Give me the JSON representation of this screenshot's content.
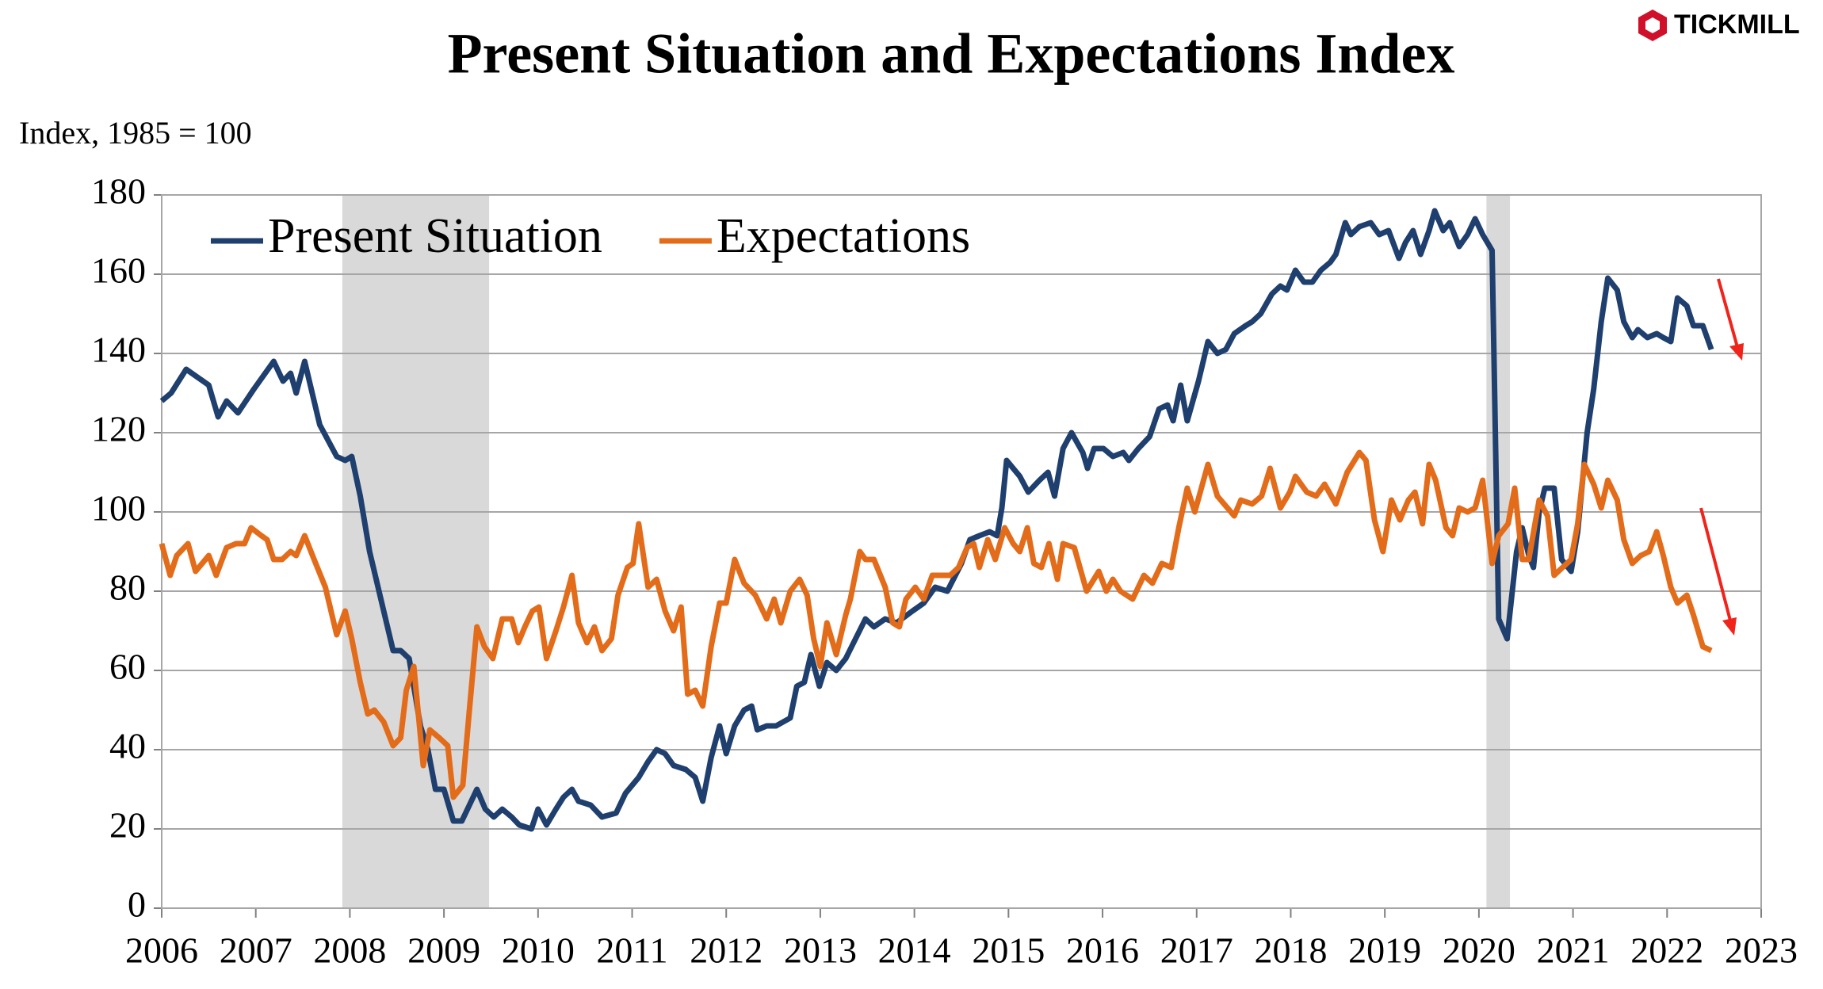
{
  "brand": "TICKMILL",
  "chart_data": {
    "type": "line",
    "title": "Present Situation and Expectations Index",
    "y_label": "Index, 1985 = 100",
    "xlim": [
      2006,
      2023
    ],
    "xticks": [
      2006,
      2007,
      2008,
      2009,
      2010,
      2011,
      2012,
      2013,
      2014,
      2015,
      2016,
      2017,
      2018,
      2019,
      2020,
      2021,
      2022,
      2023
    ],
    "ylim": [
      0,
      180
    ],
    "yticks": [
      0,
      20,
      40,
      60,
      80,
      100,
      120,
      140,
      160,
      180
    ],
    "grid": true,
    "legend": "upper left",
    "recessions": [
      [
        2007.92,
        2009.48
      ],
      [
        2020.08,
        2020.33
      ]
    ],
    "series": [
      {
        "name": "Present Situation",
        "color": "#1f3f6e",
        "x": [
          2006.0,
          2006.1,
          2006.26,
          2006.5,
          2006.6,
          2006.69,
          2006.81,
          2006.98,
          2007.19,
          2007.29,
          2007.37,
          2007.43,
          2007.52,
          2007.68,
          2007.86,
          2007.95,
          2008.02,
          2008.11,
          2008.21,
          2008.36,
          2008.46,
          2008.54,
          2008.63,
          2008.75,
          2008.83,
          2008.91,
          2009.0,
          2009.1,
          2009.19,
          2009.35,
          2009.44,
          2009.53,
          2009.62,
          2009.72,
          2009.8,
          2009.93,
          2010.0,
          2010.09,
          2010.19,
          2010.27,
          2010.36,
          2010.43,
          2010.56,
          2010.68,
          2010.83,
          2010.93,
          2011.07,
          2011.17,
          2011.26,
          2011.35,
          2011.44,
          2011.57,
          2011.67,
          2011.75,
          2011.84,
          2011.93,
          2012.0,
          2012.09,
          2012.19,
          2012.27,
          2012.33,
          2012.43,
          2012.53,
          2012.68,
          2012.75,
          2012.83,
          2012.9,
          2012.99,
          2013.07,
          2013.17,
          2013.27,
          2013.48,
          2013.57,
          2013.69,
          2013.81,
          2013.98,
          2014.1,
          2014.22,
          2014.35,
          2014.5,
          2014.59,
          2014.69,
          2014.8,
          2014.88,
          2014.93,
          2014.98,
          2015.12,
          2015.21,
          2015.33,
          2015.42,
          2015.49,
          2015.58,
          2015.67,
          2015.79,
          2015.84,
          2015.91,
          2016.01,
          2016.11,
          2016.22,
          2016.28,
          2016.38,
          2016.5,
          2016.6,
          2016.69,
          2016.75,
          2016.83,
          2016.9,
          2017.02,
          2017.12,
          2017.22,
          2017.31,
          2017.4,
          2017.52,
          2017.59,
          2017.68,
          2017.8,
          2017.89,
          2017.96,
          2018.05,
          2018.14,
          2018.23,
          2018.32,
          2018.42,
          2018.48,
          2018.58,
          2018.64,
          2018.73,
          2018.85,
          2018.94,
          2019.04,
          2019.15,
          2019.22,
          2019.3,
          2019.38,
          2019.47,
          2019.53,
          2019.62,
          2019.69,
          2019.79,
          2019.88,
          2019.96,
          2020.04,
          2020.14,
          2020.21,
          2020.3,
          2020.4,
          2020.46,
          2020.53,
          2020.58,
          2020.64,
          2020.7,
          2020.8,
          2020.88,
          2020.98,
          2021.05,
          2021.15,
          2021.22,
          2021.3,
          2021.37,
          2021.47,
          2021.54,
          2021.63,
          2021.69,
          2021.79,
          2021.89,
          2021.96,
          2022.04,
          2022.11,
          2022.21,
          2022.28,
          2022.38,
          2022.47
        ],
        "values": [
          128,
          130,
          136,
          132,
          124,
          128,
          125,
          131,
          138,
          133,
          135,
          130,
          138,
          122,
          114,
          113,
          114,
          104,
          90,
          75,
          65,
          65,
          63,
          46,
          40,
          30,
          30,
          22,
          22,
          30,
          25,
          23,
          25,
          23,
          21,
          20,
          25,
          21,
          25,
          28,
          30,
          27,
          26,
          23,
          24,
          29,
          33,
          37,
          40,
          39,
          36,
          35,
          33,
          27,
          38,
          46,
          39,
          46,
          50,
          51,
          45,
          46,
          46,
          48,
          56,
          57,
          64,
          56,
          62,
          60,
          63,
          73,
          71,
          73,
          72,
          75,
          77,
          81,
          80,
          87,
          93,
          94,
          95,
          94,
          101,
          113,
          109,
          105,
          108,
          110,
          104,
          116,
          120,
          115,
          111,
          116,
          116,
          114,
          115,
          113,
          116,
          119,
          126,
          127,
          123,
          132,
          123,
          133,
          143,
          140,
          141,
          145,
          147,
          148,
          150,
          155,
          157,
          156,
          161,
          158,
          158,
          161,
          163,
          165,
          173,
          170,
          172,
          173,
          170,
          171,
          164,
          168,
          171,
          165,
          171,
          176,
          171,
          173,
          167,
          170,
          174,
          170,
          166,
          73,
          68,
          90,
          96,
          89,
          86,
          100,
          106,
          106,
          88,
          85,
          95,
          120,
          131,
          148,
          159,
          156,
          148,
          144,
          146,
          144,
          145,
          144,
          143,
          154,
          152,
          147,
          147,
          141
        ]
      },
      {
        "name": "Expectations",
        "color": "#e36c1a",
        "x": [
          2006.0,
          2006.09,
          2006.16,
          2006.28,
          2006.36,
          2006.5,
          2006.58,
          2006.69,
          2006.79,
          2006.88,
          2006.95,
          2007.06,
          2007.12,
          2007.19,
          2007.28,
          2007.37,
          2007.43,
          2007.52,
          2007.62,
          2007.74,
          2007.86,
          2007.95,
          2008.02,
          2008.11,
          2008.19,
          2008.26,
          2008.36,
          2008.46,
          2008.54,
          2008.6,
          2008.68,
          2008.78,
          2008.85,
          2008.95,
          2009.04,
          2009.1,
          2009.2,
          2009.27,
          2009.35,
          2009.43,
          2009.52,
          2009.62,
          2009.72,
          2009.79,
          2009.86,
          2009.94,
          2010.01,
          2010.09,
          2010.19,
          2010.27,
          2010.36,
          2010.43,
          2010.52,
          2010.6,
          2010.68,
          2010.78,
          2010.85,
          2010.95,
          2011.01,
          2011.07,
          2011.17,
          2011.26,
          2011.35,
          2011.44,
          2011.52,
          2011.59,
          2011.67,
          2011.75,
          2011.84,
          2011.93,
          2012.0,
          2012.09,
          2012.19,
          2012.31,
          2012.43,
          2012.51,
          2012.58,
          2012.68,
          2012.78,
          2012.86,
          2012.93,
          2013.0,
          2013.07,
          2013.17,
          2013.27,
          2013.32,
          2013.42,
          2013.48,
          2013.57,
          2013.69,
          2013.77,
          2013.84,
          2013.91,
          2014.01,
          2014.1,
          2014.19,
          2014.28,
          2014.38,
          2014.47,
          2014.56,
          2014.63,
          2014.69,
          2014.78,
          2014.86,
          2014.96,
          2015.05,
          2015.12,
          2015.2,
          2015.27,
          2015.35,
          2015.43,
          2015.52,
          2015.58,
          2015.7,
          2015.83,
          2015.96,
          2016.04,
          2016.11,
          2016.19,
          2016.32,
          2016.44,
          2016.53,
          2016.63,
          2016.73,
          2016.81,
          2016.9,
          2016.98,
          2017.12,
          2017.22,
          2017.4,
          2017.47,
          2017.59,
          2017.69,
          2017.78,
          2017.89,
          2017.99,
          2018.05,
          2018.17,
          2018.27,
          2018.36,
          2018.48,
          2018.6,
          2018.73,
          2018.8,
          2018.89,
          2018.98,
          2019.07,
          2019.16,
          2019.25,
          2019.32,
          2019.4,
          2019.47,
          2019.54,
          2019.65,
          2019.72,
          2019.79,
          2019.88,
          2019.96,
          2020.04,
          2020.14,
          2020.21,
          2020.31,
          2020.38,
          2020.46,
          2020.53,
          2020.64,
          2020.73,
          2020.8,
          2020.89,
          2020.98,
          2021.05,
          2021.12,
          2021.22,
          2021.3,
          2021.37,
          2021.47,
          2021.54,
          2021.63,
          2021.72,
          2021.81,
          2021.89,
          2021.96,
          2022.04,
          2022.11,
          2022.21,
          2022.28,
          2022.38,
          2022.47
        ],
        "values": [
          92,
          84,
          89,
          92,
          85,
          89,
          84,
          91,
          92,
          92,
          96,
          94,
          93,
          88,
          88,
          90,
          89,
          94,
          88,
          81,
          69,
          75,
          68,
          57,
          49,
          50,
          47,
          41,
          43,
          55,
          61,
          36,
          45,
          43,
          41,
          28,
          31,
          50,
          71,
          66,
          63,
          73,
          73,
          67,
          71,
          75,
          76,
          63,
          70,
          76,
          84,
          72,
          67,
          71,
          65,
          68,
          79,
          86,
          87,
          97,
          81,
          83,
          75,
          70,
          76,
          54,
          55,
          51,
          66,
          77,
          77,
          88,
          82,
          79,
          73,
          78,
          72,
          80,
          83,
          79,
          68,
          61,
          72,
          64,
          74,
          78,
          90,
          88,
          88,
          81,
          72,
          71,
          78,
          81,
          78,
          84,
          84,
          84,
          86,
          91,
          92,
          86,
          93,
          88,
          96,
          92,
          90,
          96,
          87,
          86,
          92,
          83,
          92,
          91,
          80,
          85,
          80,
          83,
          80,
          78,
          84,
          82,
          87,
          86,
          96,
          106,
          100,
          112,
          104,
          99,
          103,
          102,
          104,
          111,
          101,
          105,
          109,
          105,
          104,
          107,
          102,
          110,
          115,
          113,
          98,
          90,
          103,
          98,
          103,
          105,
          97,
          112,
          108,
          96,
          94,
          101,
          100,
          101,
          108,
          87,
          94,
          97,
          106,
          88,
          88,
          103,
          99,
          84,
          86,
          88,
          97,
          112,
          107,
          101,
          108,
          103,
          93,
          87,
          89,
          90,
          95,
          89,
          81,
          77,
          79,
          74,
          66,
          65
        ]
      }
    ]
  }
}
